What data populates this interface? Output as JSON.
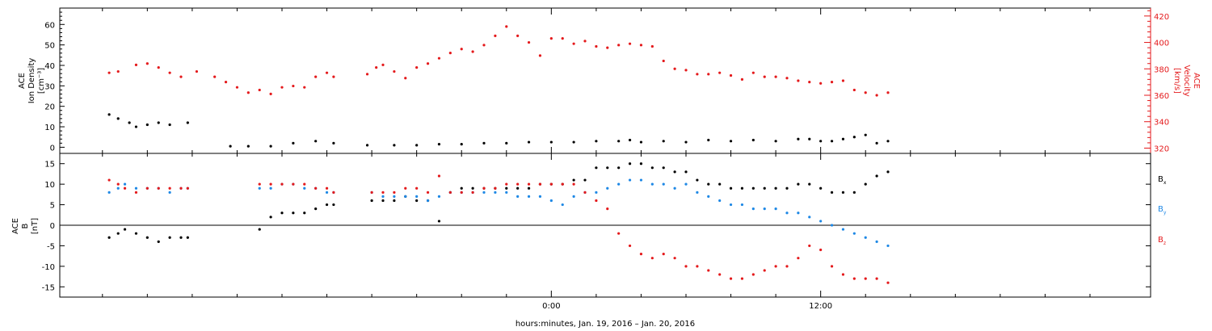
{
  "chart_data": [
    {
      "type": "scatter",
      "panel": "top",
      "ylabel": [
        "ACE",
        "Ion Density",
        "[cm⁻³]"
      ],
      "y2label": [
        "ACE",
        "Velocity",
        "[km/s]"
      ],
      "ylim": [
        -3,
        68
      ],
      "y2lim": [
        316,
        426
      ],
      "yticks": [
        0,
        10,
        20,
        30,
        40,
        50,
        60
      ],
      "y2ticks": [
        320,
        340,
        360,
        380,
        400,
        420
      ],
      "colors": {
        "density": "#000000",
        "velocity": "#e41a1c"
      },
      "series": [
        {
          "key": "velocity",
          "x": [
            -19.7,
            -19.3,
            -18.5,
            -18.0,
            -17.5,
            -17.0,
            -16.5,
            -15.8,
            -15.0,
            -14.5,
            -14.0,
            -13.5,
            -13.0,
            -12.5,
            -12.0,
            -11.5,
            -11.0,
            -10.5,
            -10.0,
            -9.7,
            -8.2,
            -7.8,
            -7.5,
            -7.0,
            -6.5,
            -6.0,
            -5.5,
            -5.0,
            -4.5,
            -4.0,
            -3.5,
            -3.0,
            -2.5,
            -2.0,
            -1.5,
            -1.0,
            -0.5,
            0.0,
            0.5,
            1.0,
            1.5,
            2.0,
            2.5,
            3.0,
            3.5,
            4.0,
            4.5,
            5.0,
            5.5,
            6.0,
            6.5,
            7.0,
            7.5,
            8.0,
            8.5,
            9.0,
            9.5,
            10.0,
            10.5,
            11.0,
            11.5,
            12.0,
            12.5,
            13.0,
            13.5,
            14.0,
            14.5,
            15.0
          ],
          "y": [
            377,
            378,
            383,
            384,
            381,
            377,
            374,
            378,
            374,
            370,
            366,
            362,
            364,
            361,
            366,
            367,
            366,
            374,
            377,
            374,
            376,
            381,
            383,
            378,
            373,
            381,
            384,
            388,
            392,
            395,
            393,
            398,
            405,
            412,
            405,
            400,
            390,
            403,
            403,
            399,
            401,
            397,
            396,
            398,
            399,
            398,
            397,
            386,
            380,
            379,
            376,
            376,
            377,
            375,
            372,
            377,
            374,
            374,
            373,
            371,
            370,
            369,
            370,
            371,
            364,
            362,
            360,
            362
          ]
        },
        {
          "key": "density",
          "x": [
            -19.7,
            -19.3,
            -18.8,
            -18.5,
            -18.0,
            -17.5,
            -17.0,
            -16.2,
            -14.3,
            -13.5,
            -12.5,
            -11.5,
            -10.5,
            -9.7,
            -8.2,
            -7.0,
            -6.0,
            -5.0,
            -4.0,
            -3.0,
            -2.0,
            -1.0,
            0.0,
            1.0,
            2.0,
            3.0,
            3.5,
            4.0,
            5.0,
            6.0,
            7.0,
            8.0,
            9.0,
            10.0,
            11.0,
            11.5,
            12.0,
            12.5,
            13.0,
            13.5,
            14.0,
            14.5,
            15.0
          ],
          "y": [
            16,
            14,
            12,
            10,
            11,
            12,
            11,
            12,
            0.5,
            0.5,
            0.5,
            2,
            3,
            2,
            1,
            1,
            1,
            1.5,
            1.5,
            2,
            2,
            2.5,
            2.5,
            2.5,
            3,
            3,
            3.5,
            2.5,
            3,
            2.5,
            3.5,
            3,
            3.5,
            3,
            4,
            4,
            3,
            3,
            4,
            5,
            6,
            2,
            3
          ]
        }
      ]
    },
    {
      "type": "scatter",
      "panel": "bottom",
      "ylabel": [
        "ACE",
        "B",
        "[nT]"
      ],
      "ylim": [
        -17.5,
        17.5
      ],
      "yticks": [
        -15,
        -10,
        -5,
        0,
        5,
        10,
        15
      ],
      "legend": [
        "B",
        "B",
        "B"
      ],
      "legend_sub": [
        "x",
        "y",
        "z"
      ],
      "legend_position": "right",
      "colors": {
        "bx": "#000000",
        "by": "#1e88e5",
        "bz": "#e41a1c"
      },
      "series": [
        {
          "key": "bx",
          "x": [
            -19.7,
            -19.3,
            -19.0,
            -18.5,
            -18.0,
            -17.5,
            -17.0,
            -16.5,
            -16.2,
            -13.0,
            -12.5,
            -12.0,
            -11.5,
            -11.0,
            -10.5,
            -10.0,
            -9.7,
            -8.0,
            -7.5,
            -7.0,
            -6.5,
            -6.0,
            -5.5,
            -5.0,
            -4.5,
            -4.0,
            -3.5,
            -3.0,
            -2.5,
            -2.0,
            -1.5,
            -1.0,
            -0.5,
            0.0,
            0.5,
            1.0,
            1.5,
            2.0,
            2.5,
            3.0,
            3.5,
            4.0,
            4.5,
            5.0,
            5.5,
            6.0,
            6.5,
            7.0,
            7.5,
            8.0,
            8.5,
            9.0,
            9.5,
            10.0,
            10.5,
            11.0,
            11.5,
            12.0,
            12.5,
            13.0,
            13.5,
            14.0,
            14.5,
            15.0
          ],
          "y": [
            -3,
            -2,
            -1,
            -2,
            -3,
            -4,
            -3,
            -3,
            -3,
            -1,
            2,
            3,
            3,
            3,
            4,
            5,
            5,
            6,
            6,
            6,
            7,
            6,
            6,
            1,
            8,
            9,
            9,
            9,
            9,
            9,
            9,
            9,
            10,
            10,
            10,
            11,
            11,
            14,
            14,
            14,
            15,
            15,
            14,
            14,
            13,
            13,
            11,
            10,
            10,
            9,
            9,
            9,
            9,
            9,
            9,
            10,
            10,
            9,
            8,
            8,
            8,
            10,
            12,
            13
          ]
        },
        {
          "key": "by",
          "x": [
            -19.7,
            -19.3,
            -19.0,
            -18.5,
            -18.0,
            -17.5,
            -17.0,
            -16.5,
            -16.2,
            -13.0,
            -12.5,
            -12.0,
            -11.5,
            -11.0,
            -10.5,
            -10.0,
            -9.7,
            -8.0,
            -7.5,
            -7.0,
            -6.5,
            -6.0,
            -5.5,
            -5.0,
            -4.5,
            -4.0,
            -3.5,
            -3.0,
            -2.5,
            -2.0,
            -1.5,
            -1.0,
            -0.5,
            0.0,
            0.5,
            1.0,
            1.5,
            2.0,
            2.5,
            3.0,
            3.5,
            4.0,
            4.5,
            5.0,
            5.5,
            6.0,
            6.5,
            7.0,
            7.5,
            8.0,
            8.5,
            9.0,
            9.5,
            10.0,
            10.5,
            11.0,
            11.5,
            12.0,
            12.5,
            13.0,
            13.5,
            14.0,
            14.5,
            15.0
          ],
          "y": [
            8,
            9,
            10,
            9,
            9,
            9,
            8,
            9,
            9,
            9,
            9,
            10,
            10,
            9,
            9,
            8,
            8,
            8,
            7,
            7,
            7,
            7,
            6,
            7,
            8,
            8,
            8,
            8,
            8,
            8,
            7,
            7,
            7,
            6,
            5,
            7,
            8,
            8,
            9,
            10,
            11,
            11,
            10,
            10,
            9,
            10,
            8,
            7,
            6,
            5,
            5,
            4,
            4,
            4,
            3,
            3,
            2,
            1,
            0,
            -1,
            -2,
            -3,
            -4,
            -5
          ]
        },
        {
          "key": "bz",
          "x": [
            -19.7,
            -19.3,
            -19.0,
            -18.5,
            -18.0,
            -17.5,
            -17.0,
            -16.5,
            -16.2,
            -13.0,
            -12.5,
            -12.0,
            -11.5,
            -11.0,
            -10.5,
            -10.0,
            -9.7,
            -8.0,
            -7.5,
            -7.0,
            -6.5,
            -6.0,
            -5.5,
            -5.0,
            -4.5,
            -4.0,
            -3.5,
            -3.0,
            -2.5,
            -2.0,
            -1.5,
            -1.0,
            -0.5,
            0.0,
            0.5,
            1.0,
            1.5,
            2.0,
            2.5,
            3.0,
            3.5,
            4.0,
            4.5,
            5.0,
            5.5,
            6.0,
            6.5,
            7.0,
            7.5,
            8.0,
            8.5,
            9.0,
            9.5,
            10.0,
            10.5,
            11.0,
            11.5,
            12.0,
            12.5,
            13.0,
            13.5,
            14.0,
            14.5,
            15.0
          ],
          "y": [
            11,
            10,
            9,
            8,
            9,
            9,
            9,
            9,
            9,
            10,
            10,
            10,
            10,
            10,
            9,
            9,
            8,
            8,
            8,
            8,
            9,
            9,
            8,
            12,
            8,
            8,
            8,
            9,
            9,
            10,
            10,
            10,
            10,
            10,
            10,
            10,
            8,
            6,
            4,
            -2,
            -5,
            -7,
            -8,
            -7,
            -8,
            -10,
            -10,
            -11,
            -12,
            -13,
            -13,
            -12,
            -11,
            -10,
            -10,
            -8,
            -5,
            -6,
            -10,
            -12,
            -13,
            -13,
            -13,
            -14
          ]
        }
      ]
    }
  ],
  "xaxis": {
    "label": "hours:minutes, Jan. 19, 2016 – Jan. 20, 2016",
    "range": [
      -21.9,
      26.7
    ],
    "tick_labels": [
      {
        "x": 0,
        "label": "0:00"
      },
      {
        "x": 12,
        "label": "12:00"
      }
    ],
    "minor_ticks": [
      -20,
      -18,
      -16,
      -14,
      -12,
      -10,
      -8,
      -6,
      -4,
      -2,
      2,
      4,
      6,
      8,
      10,
      14,
      16,
      18,
      20,
      22,
      24
    ]
  }
}
